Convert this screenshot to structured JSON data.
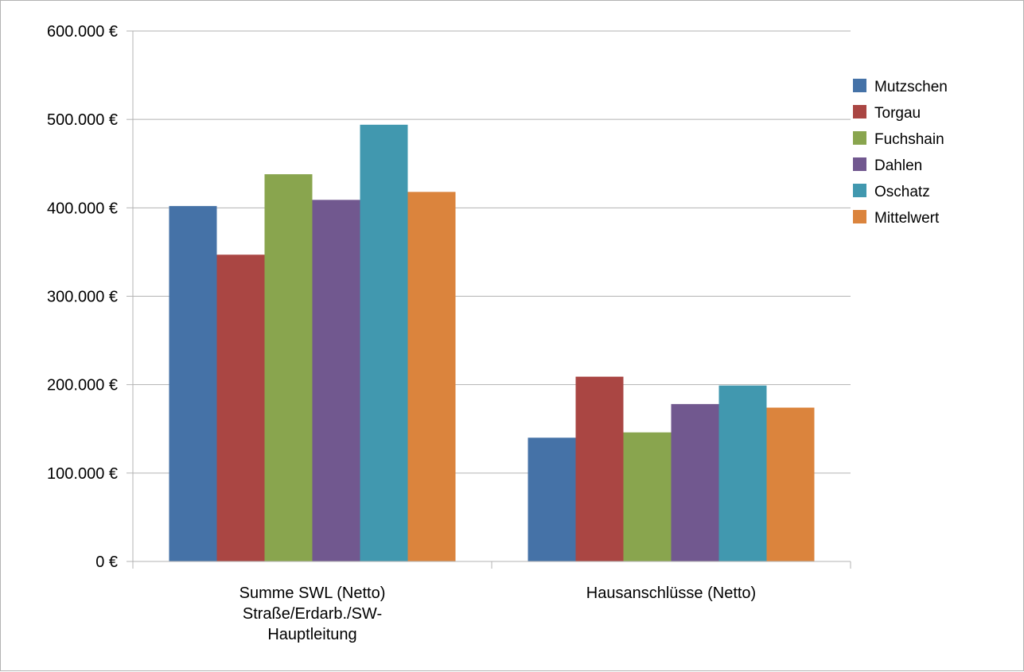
{
  "chart_data": {
    "type": "bar",
    "title": "",
    "xlabel": "",
    "ylabel": "",
    "categories": [
      [
        "Summe SWL (Netto)",
        "Straße/Erdarb./SW-",
        "Hauptleitung"
      ],
      [
        "Hausanschlüsse (Netto)"
      ]
    ],
    "series": [
      {
        "name": "Mutzschen",
        "color": "#4572a7",
        "values": [
          402000,
          140000
        ]
      },
      {
        "name": "Torgau",
        "color": "#aa4643",
        "values": [
          347000,
          209000
        ]
      },
      {
        "name": "Fuchshain",
        "color": "#89a54e",
        "values": [
          438000,
          146000
        ]
      },
      {
        "name": "Dahlen",
        "color": "#71588f",
        "values": [
          409000,
          178000
        ]
      },
      {
        "name": "Oschatz",
        "color": "#4198af",
        "values": [
          494000,
          199000
        ]
      },
      {
        "name": "Mittelwert",
        "color": "#db843d",
        "values": [
          418000,
          174000
        ]
      }
    ],
    "ylim": [
      0,
      600000
    ],
    "yticks": [
      0,
      100000,
      200000,
      300000,
      400000,
      500000,
      600000
    ],
    "ytick_labels": [
      "0 €",
      "100.000 €",
      "200.000 €",
      "300.000 €",
      "400.000 €",
      "500.000 €",
      "600.000 €"
    ],
    "grid": true,
    "legend_position": "right"
  }
}
